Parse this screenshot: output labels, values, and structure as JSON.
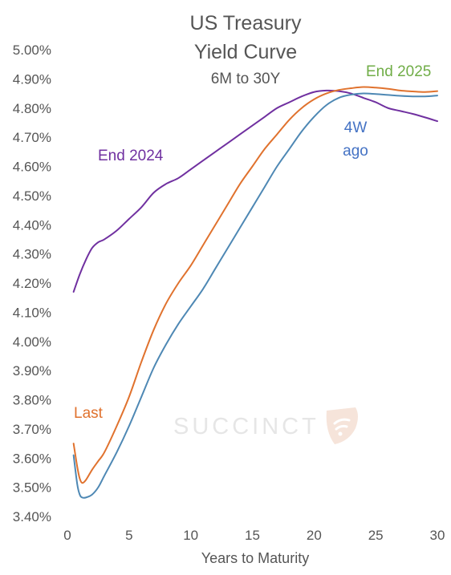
{
  "chart_data": {
    "type": "line",
    "title_lines": [
      "US Treasury",
      "Yield Curve"
    ],
    "subtitle": "6M to 30Y",
    "xlabel": "Years to Maturity",
    "ylabel": "",
    "xlim": [
      0,
      30
    ],
    "ylim": [
      3.4,
      5.0
    ],
    "x_ticks": [
      "0",
      "5",
      "10",
      "15",
      "20",
      "25",
      "30"
    ],
    "y_ticks": [
      "3.40%",
      "3.50%",
      "3.60%",
      "3.70%",
      "3.80%",
      "3.90%",
      "4.00%",
      "4.10%",
      "4.20%",
      "4.30%",
      "4.40%",
      "4.50%",
      "4.60%",
      "4.70%",
      "4.80%",
      "4.90%",
      "5.00%"
    ],
    "grid": false,
    "legend": "none",
    "watermark": "SUCCINCT",
    "series": [
      {
        "name": "End 2024",
        "color": "#7030a0",
        "x": [
          0.5,
          1,
          1.5,
          2,
          2.5,
          3,
          4,
          5,
          6,
          7,
          8,
          9,
          10,
          11,
          12,
          13,
          14,
          15,
          16,
          17,
          18,
          19,
          20,
          21,
          22,
          23,
          24,
          25,
          26,
          27,
          28,
          29,
          30
        ],
        "y": [
          4.17,
          4.23,
          4.28,
          4.32,
          4.34,
          4.35,
          4.38,
          4.42,
          4.46,
          4.51,
          4.54,
          4.56,
          4.59,
          4.62,
          4.65,
          4.68,
          4.71,
          4.74,
          4.77,
          4.8,
          4.82,
          4.84,
          4.855,
          4.86,
          4.858,
          4.85,
          4.835,
          4.82,
          4.8,
          4.79,
          4.78,
          4.768,
          4.755
        ]
      },
      {
        "name": "Last",
        "color": "#e0722e",
        "x": [
          0.5,
          0.8,
          1,
          1.2,
          1.5,
          2,
          2.5,
          3,
          4,
          5,
          6,
          7,
          8,
          9,
          10,
          11,
          12,
          13,
          14,
          15,
          16,
          17,
          18,
          19,
          20,
          21,
          22,
          23,
          24,
          25,
          26,
          27,
          28,
          29,
          30
        ],
        "y": [
          3.65,
          3.57,
          3.53,
          3.515,
          3.525,
          3.56,
          3.59,
          3.62,
          3.71,
          3.81,
          3.93,
          4.04,
          4.13,
          4.2,
          4.26,
          4.33,
          4.4,
          4.47,
          4.54,
          4.6,
          4.66,
          4.71,
          4.76,
          4.8,
          4.83,
          4.85,
          4.862,
          4.868,
          4.872,
          4.87,
          4.866,
          4.86,
          4.857,
          4.855,
          4.858
        ]
      },
      {
        "name": "4W ago",
        "color": "#4e88b4",
        "x": [
          0.5,
          0.8,
          1,
          1.2,
          1.5,
          2,
          2.5,
          3,
          4,
          5,
          6,
          7,
          8,
          9,
          10,
          11,
          12,
          13,
          14,
          15,
          16,
          17,
          18,
          19,
          20,
          21,
          22,
          23,
          24,
          25,
          26,
          27,
          28,
          29,
          30
        ],
        "y": [
          3.61,
          3.51,
          3.475,
          3.465,
          3.465,
          3.475,
          3.5,
          3.54,
          3.62,
          3.71,
          3.81,
          3.91,
          3.99,
          4.06,
          4.12,
          4.18,
          4.25,
          4.32,
          4.39,
          4.46,
          4.53,
          4.6,
          4.66,
          4.72,
          4.77,
          4.81,
          4.835,
          4.846,
          4.85,
          4.848,
          4.845,
          4.842,
          4.84,
          4.84,
          4.843
        ]
      }
    ],
    "annotations": [
      {
        "text": "End 2024",
        "color": "#7030a0",
        "lines": [
          "End 2024"
        ]
      },
      {
        "text": "End 2025",
        "color": "#70ad47",
        "lines": [
          "End 2025"
        ]
      },
      {
        "text": "Last",
        "color": "#e0722e",
        "lines": [
          "Last"
        ]
      },
      {
        "text": "4W ago",
        "color": "#4472c4",
        "lines": [
          "4W",
          "ago"
        ]
      }
    ]
  }
}
